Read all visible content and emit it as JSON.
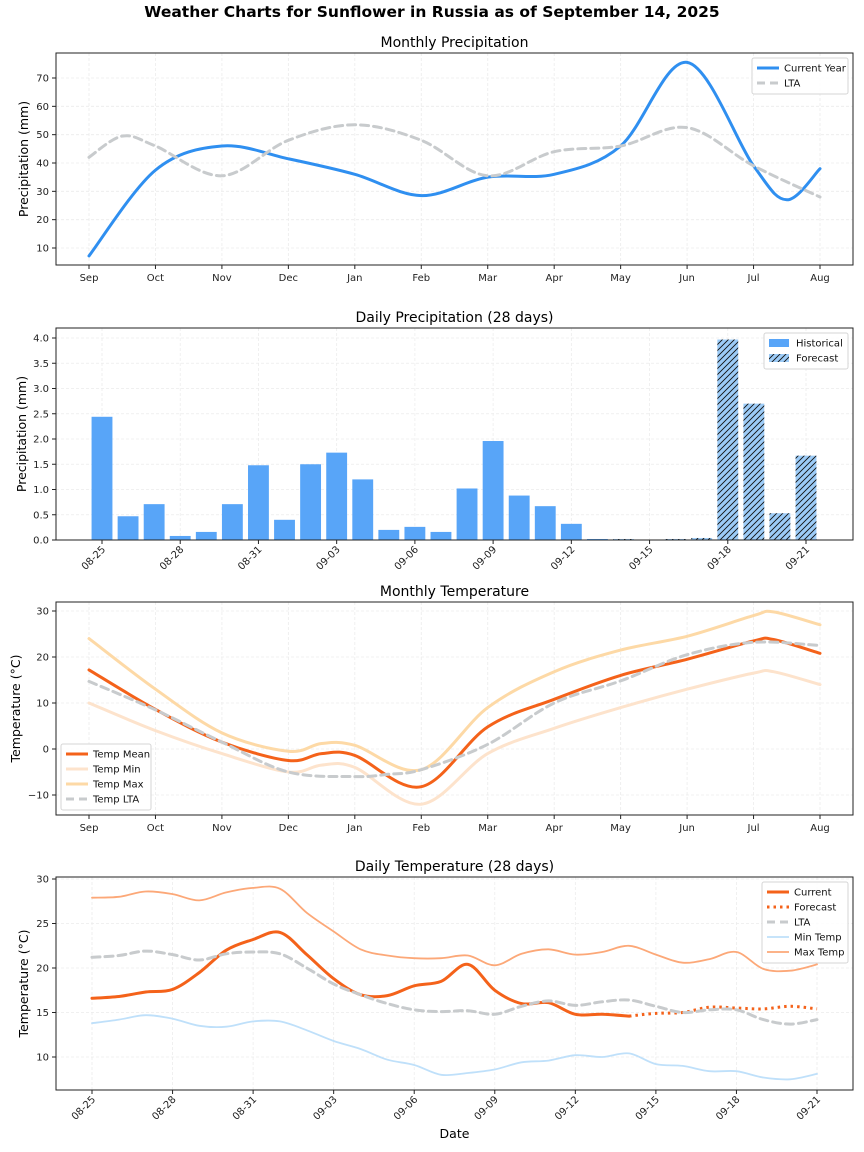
{
  "figure": {
    "title": "Weather Charts for Sunflower in Russia as of September 14, 2025"
  },
  "chart_data": [
    {
      "type": "line",
      "title": "Monthly Precipitation",
      "xlabel": "",
      "ylabel": "Precipitation (mm)",
      "categories": [
        "Sep",
        "Oct",
        "Nov",
        "Dec",
        "Jan",
        "Feb",
        "Mar",
        "Apr",
        "May",
        "Jun",
        "Jul",
        "Aug"
      ],
      "yticks": [
        10,
        20,
        30,
        40,
        50,
        60,
        70
      ],
      "ylim": [
        4.5,
        79
      ],
      "grid": true,
      "legend": "top-right",
      "series": [
        {
          "name": "Current Year",
          "color": "#2f8ff0",
          "style": "solid",
          "values": [
            7.2,
            37.5,
            46.0,
            41.5,
            36.0,
            28.5,
            35.0,
            36.0,
            46.0,
            75.5,
            39.0,
            38.0
          ],
          "extra_points": [
            [
              10.5,
              27.0
            ]
          ]
        },
        {
          "name": "LTA",
          "color": "#c8cbcd",
          "style": "dashed",
          "values": [
            42.0,
            46.0,
            35.5,
            48.0,
            53.5,
            48.0,
            35.5,
            44.0,
            46.0,
            52.5,
            39.0,
            28.0
          ],
          "extra_points": [
            [
              0.5,
              49.5
            ]
          ]
        }
      ]
    },
    {
      "type": "bar",
      "title": "Daily Precipitation (28 days)",
      "xlabel": "",
      "ylabel": "Precipitation (mm)",
      "categories": [
        "08-25",
        "08-26",
        "08-27",
        "08-28",
        "08-29",
        "08-30",
        "08-31",
        "09-01",
        "09-02",
        "09-03",
        "09-04",
        "09-05",
        "09-06",
        "09-07",
        "09-08",
        "09-09",
        "09-10",
        "09-11",
        "09-12",
        "09-13",
        "09-14",
        "09-15",
        "09-16",
        "09-17",
        "09-18",
        "09-19",
        "09-20",
        "09-21"
      ],
      "xticks": [
        "08-25",
        "08-28",
        "08-31",
        "09-03",
        "09-06",
        "09-09",
        "09-12",
        "09-15",
        "09-18",
        "09-21"
      ],
      "yticks": [
        "0.0",
        "0.5",
        "1.0",
        "1.5",
        "2.0",
        "2.5",
        "3.0",
        "3.5",
        "4.0"
      ],
      "ylim": [
        0,
        4.15
      ],
      "grid": true,
      "legend": "top-right",
      "series": [
        {
          "name": "Historical",
          "color": "#58a5f8",
          "values": [
            2.44,
            0.47,
            0.71,
            0.08,
            0.16,
            0.71,
            1.48,
            0.4,
            1.5,
            1.73,
            1.2,
            0.2,
            0.26,
            0.16,
            1.02,
            1.96,
            0.88,
            0.67,
            0.32,
            0.02
          ]
        },
        {
          "name": "Forecast",
          "color": "#9ccbf7",
          "hatch": "///",
          "values": [
            0.02,
            0.0,
            0.02,
            0.04,
            3.97,
            2.7,
            0.53,
            1.67
          ]
        }
      ]
    },
    {
      "type": "line",
      "title": "Monthly Temperature",
      "xlabel": "",
      "ylabel": "Temperature (°C)",
      "categories": [
        "Sep",
        "Oct",
        "Nov",
        "Dec",
        "Jan",
        "Feb",
        "Mar",
        "Apr",
        "May",
        "Jun",
        "Jul",
        "Aug"
      ],
      "yticks": [
        -10,
        0,
        10,
        20,
        30
      ],
      "ylim": [
        -14,
        32
      ],
      "grid": true,
      "legend": "bottom-left",
      "series": [
        {
          "name": "Temp Mean",
          "color": "#f4621a",
          "style": "solid",
          "values": [
            17.2,
            8.6,
            1.5,
            -2.5,
            -1.4,
            -8.2,
            4.8,
            10.8,
            16.0,
            19.5,
            23.5,
            20.8
          ],
          "extra_points": [
            [
              3.5,
              -1.0
            ],
            [
              10.3,
              23.8
            ]
          ]
        },
        {
          "name": "Temp Min",
          "color": "#fde3cc",
          "style": "solid",
          "values": [
            10.0,
            4.0,
            -1.0,
            -5.0,
            -4.0,
            -12.0,
            -1.0,
            4.5,
            9.0,
            13.0,
            16.5,
            14.0
          ],
          "extra_points": [
            [
              3.5,
              -3.5
            ],
            [
              10.3,
              16.8
            ]
          ]
        },
        {
          "name": "Temp Max",
          "color": "#fdd9a6",
          "style": "solid",
          "values": [
            24.0,
            13.0,
            3.5,
            -0.5,
            0.8,
            -4.5,
            9.0,
            16.8,
            21.5,
            24.5,
            29.0,
            27.0
          ],
          "extra_points": [
            [
              3.5,
              1.2
            ],
            [
              10.3,
              29.8
            ]
          ]
        },
        {
          "name": "Temp LTA",
          "color": "#c8cbcd",
          "style": "dashed",
          "values": [
            14.7,
            8.5,
            1.5,
            -5.0,
            -6.0,
            -4.5,
            1.0,
            10.0,
            14.8,
            20.5,
            23.2,
            22.5
          ],
          "extra_points": [
            [
              4.5,
              -5.5
            ]
          ]
        }
      ]
    },
    {
      "type": "line",
      "title": "Daily Temperature (28 days)",
      "xlabel": "Date",
      "ylabel": "Temperature (°C)",
      "categories": [
        "08-25",
        "08-26",
        "08-27",
        "08-28",
        "08-29",
        "08-30",
        "08-31",
        "09-01",
        "09-02",
        "09-03",
        "09-04",
        "09-05",
        "09-06",
        "09-07",
        "09-08",
        "09-09",
        "09-10",
        "09-11",
        "09-12",
        "09-13",
        "09-14",
        "09-15",
        "09-16",
        "09-17",
        "09-18",
        "09-19",
        "09-20",
        "09-21"
      ],
      "xticks": [
        "08-25",
        "08-28",
        "08-31",
        "09-03",
        "09-06",
        "09-09",
        "09-12",
        "09-15",
        "09-18",
        "09-21"
      ],
      "yticks": [
        10,
        15,
        20,
        25,
        30
      ],
      "ylim": [
        6.3,
        30.2
      ],
      "grid": true,
      "legend": "top-right",
      "series": [
        {
          "name": "Current",
          "color": "#f4621a",
          "style": "solid",
          "start_index": 0,
          "values": [
            16.6,
            16.8,
            17.3,
            17.6,
            19.5,
            22.0,
            23.2,
            24.0,
            21.5,
            18.8,
            17.0,
            16.9,
            18.0,
            18.5,
            20.4,
            17.5,
            16.0,
            16.1,
            14.8,
            14.8,
            14.6
          ]
        },
        {
          "name": "Forecast",
          "color": "#f4621a",
          "style": "dotted",
          "start_index": 20,
          "values": [
            14.6,
            14.9,
            15.0,
            15.6,
            15.5,
            15.4,
            15.7,
            15.4
          ]
        },
        {
          "name": "LTA",
          "color": "#c8cbcd",
          "style": "dashed",
          "start_index": 0,
          "values": [
            21.2,
            21.4,
            21.9,
            21.5,
            20.9,
            21.6,
            21.8,
            21.6,
            20.0,
            18.2,
            17.0,
            16.0,
            15.3,
            15.1,
            15.2,
            14.8,
            15.7,
            16.3,
            15.8,
            16.2,
            16.4,
            15.7,
            15.0,
            15.3,
            15.3,
            14.2,
            13.7,
            14.2
          ]
        },
        {
          "name": "Min Temp",
          "color": "#bfe0fa",
          "style": "solid",
          "start_index": 0,
          "values": [
            13.8,
            14.2,
            14.7,
            14.3,
            13.5,
            13.4,
            14.0,
            14.0,
            13.0,
            11.8,
            10.9,
            9.7,
            9.1,
            8.0,
            8.2,
            8.6,
            9.4,
            9.6,
            10.2,
            10.0,
            10.4,
            9.2,
            9.0,
            8.4,
            8.4,
            7.7,
            7.5,
            8.1
          ]
        },
        {
          "name": "Max Temp",
          "color": "#fca878",
          "style": "solid",
          "start_index": 0,
          "values": [
            27.9,
            28.0,
            28.6,
            28.3,
            27.6,
            28.5,
            29.0,
            28.9,
            26.2,
            24.1,
            22.1,
            21.4,
            21.1,
            21.1,
            21.4,
            20.3,
            21.6,
            22.1,
            21.5,
            21.8,
            22.5,
            21.5,
            20.6,
            21.0,
            21.8,
            19.9,
            19.7,
            20.4
          ]
        }
      ]
    }
  ]
}
